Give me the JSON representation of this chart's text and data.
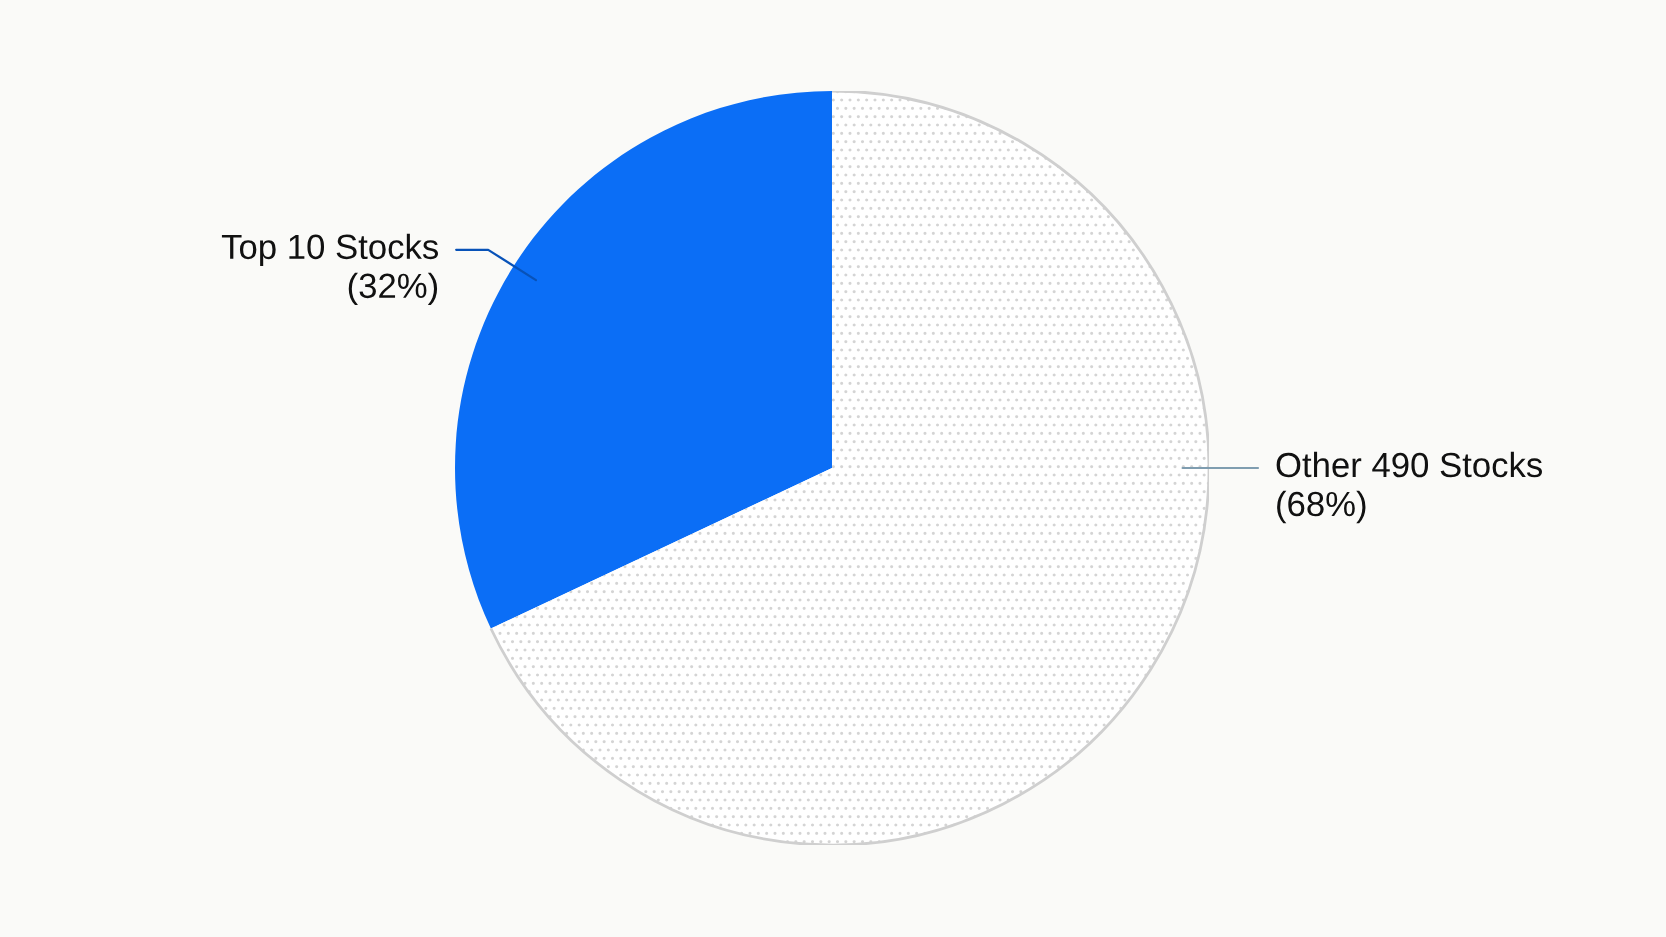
{
  "chart_data": {
    "type": "pie",
    "categories": [
      "Top 10 Stocks",
      "Other 490 Stocks"
    ],
    "values": [
      32,
      68
    ],
    "colors": [
      "#0b6ef6",
      "#ffffff"
    ],
    "value_labels": [
      "(32%)",
      "(68%)"
    ]
  }
}
